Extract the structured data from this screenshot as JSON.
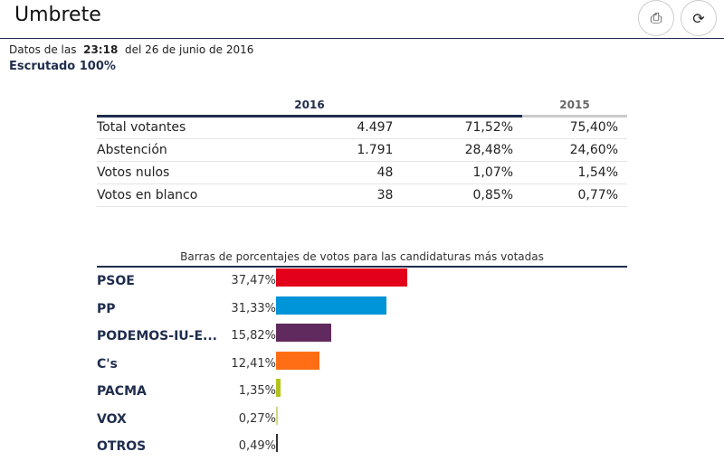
{
  "header": {
    "title": "Umbrete",
    "print_icon": "print-icon",
    "refresh_icon": "refresh-icon"
  },
  "info": {
    "prefix": "Datos de las",
    "time": "23:18",
    "suffix": "del 26 de junio de 2016",
    "escrutado": "Escrutado 100%"
  },
  "table": {
    "headers": [
      "2016",
      "2015"
    ],
    "rows": [
      {
        "label": "Total votantes",
        "votes": "4.497",
        "pct2016": "71,52%",
        "pct2015": "75,40%"
      },
      {
        "label": "Abstención",
        "votes": "1.791",
        "pct2016": "28,48%",
        "pct2015": "24,60%"
      },
      {
        "label": "Votos nulos",
        "votes": "48",
        "pct2016": "1,07%",
        "pct2015": "1,54%"
      },
      {
        "label": "Votos en blanco",
        "votes": "38",
        "pct2016": "0,85%",
        "pct2015": "0,77%"
      }
    ]
  },
  "chart_data": {
    "type": "bar",
    "title": "Barras de porcentajes de votos para las candidaturas más votadas",
    "categories": [
      "PSOE",
      "PP",
      "PODEMOS-IU-E...",
      "C's",
      "PACMA",
      "VOX",
      "OTROS"
    ],
    "labels": [
      "37,47%",
      "31,33%",
      "15,82%",
      "12,41%",
      "1,35%",
      "0,27%",
      "0,49%"
    ],
    "values": [
      37.47,
      31.33,
      15.82,
      12.41,
      1.35,
      0.27,
      0.49
    ],
    "colors": [
      "#e2001a",
      "#0094d9",
      "#612a5e",
      "#ff6e15",
      "#b3c31a",
      "#d2d982",
      "#333333"
    ],
    "xlim": [
      0,
      100
    ]
  }
}
